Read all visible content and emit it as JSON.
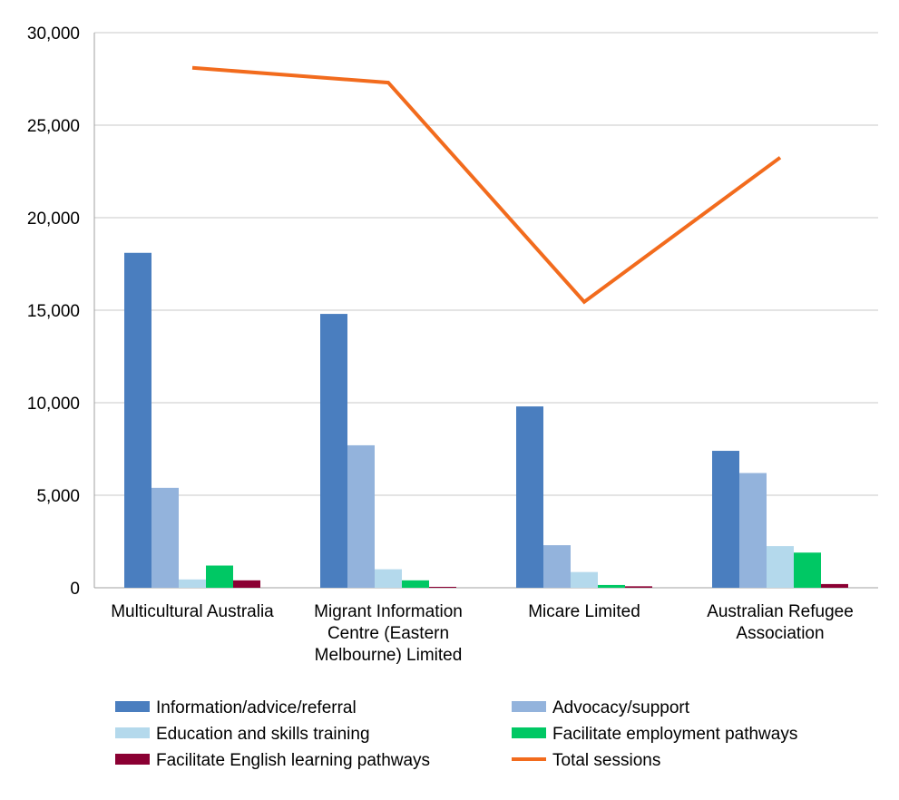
{
  "chart_data": {
    "type": "bar",
    "categories": [
      [
        "Multicultural Australia"
      ],
      [
        "Migrant Information",
        "Centre (Eastern",
        "Melbourne) Limited"
      ],
      [
        "Micare Limited"
      ],
      [
        "Australian Refugee",
        "Association"
      ]
    ],
    "ylim": [
      0,
      30000
    ],
    "yticks": [
      "0",
      "5,000",
      "10,000",
      "15,000",
      "20,000",
      "25,000",
      "30,000"
    ],
    "grid": true,
    "legend_position": "bottom",
    "series": [
      {
        "name": "Information/advice/referral",
        "type": "bar",
        "color": "#4a7ebf",
        "values": [
          18100,
          14800,
          9800,
          7400
        ]
      },
      {
        "name": "Advocacy/support",
        "type": "bar",
        "color": "#93b3dc",
        "values": [
          5400,
          7700,
          2300,
          6200
        ]
      },
      {
        "name": "Education and skills training",
        "type": "bar",
        "color": "#b4d9ec",
        "values": [
          450,
          1000,
          850,
          2250
        ]
      },
      {
        "name": "Facilitate employment pathways",
        "type": "bar",
        "color": "#00c864",
        "values": [
          1200,
          400,
          150,
          1900
        ]
      },
      {
        "name": "Facilitate English learning pathways",
        "type": "bar",
        "color": "#8b0033",
        "values": [
          400,
          50,
          80,
          200
        ]
      },
      {
        "name": "Total sessions",
        "type": "line",
        "color": "#f26b1d",
        "values": [
          28100,
          27300,
          15450,
          23250
        ]
      }
    ]
  }
}
